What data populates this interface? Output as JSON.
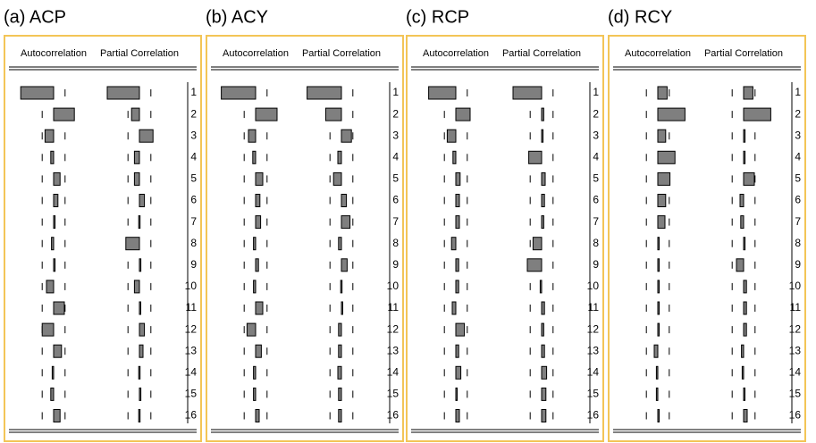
{
  "chart_data": [
    {
      "type": "correlogram",
      "title": "(a) ACP",
      "categories": [
        1,
        2,
        3,
        4,
        5,
        6,
        7,
        8,
        9,
        10,
        11,
        12,
        13,
        14,
        15,
        16
      ],
      "series": [
        {
          "name": "Autocorrelation",
          "color": "#7f7f7f",
          "values": [
            -0.46,
            0.29,
            -0.12,
            -0.04,
            0.09,
            0.06,
            0.02,
            -0.03,
            0.02,
            -0.1,
            0.15,
            -0.16,
            0.11,
            -0.02,
            -0.04,
            0.09
          ]
        },
        {
          "name": "Partial Correlation",
          "color": "#7f7f7f",
          "values": [
            -0.45,
            -0.11,
            0.19,
            -0.07,
            -0.07,
            0.07,
            -0.01,
            -0.19,
            0.02,
            -0.07,
            0.01,
            0.07,
            0.05,
            -0.01,
            0.02,
            -0.01
          ]
        }
      ],
      "xlim": [
        -1,
        1
      ],
      "bounds": [
        -0.16,
        0.16
      ]
    },
    {
      "type": "correlogram",
      "title": "(b) ACY",
      "categories": [
        1,
        2,
        3,
        4,
        5,
        6,
        7,
        8,
        9,
        10,
        11,
        12,
        13,
        14,
        15,
        16
      ],
      "series": [
        {
          "name": "Autocorrelation",
          "color": "#7f7f7f",
          "values": [
            -0.48,
            0.3,
            -0.1,
            -0.04,
            0.1,
            0.06,
            0.07,
            -0.03,
            0.04,
            -0.03,
            0.1,
            -0.12,
            0.08,
            -0.03,
            -0.03,
            0.05
          ]
        },
        {
          "name": "Partial Correlation",
          "color": "#7f7f7f",
          "values": [
            -0.48,
            -0.22,
            0.14,
            -0.05,
            -0.11,
            0.07,
            0.12,
            -0.04,
            0.08,
            -0.01,
            0.01,
            -0.04,
            -0.04,
            -0.05,
            -0.04,
            -0.04
          ]
        }
      ],
      "xlim": [
        -1,
        1
      ],
      "bounds": [
        -0.16,
        0.16
      ]
    },
    {
      "type": "correlogram",
      "title": "(c) RCP",
      "categories": [
        1,
        2,
        3,
        4,
        5,
        6,
        7,
        8,
        9,
        10,
        11,
        12,
        13,
        14,
        15,
        16
      ],
      "series": [
        {
          "name": "Autocorrelation",
          "color": "#7f7f7f",
          "values": [
            -0.38,
            0.2,
            -0.12,
            -0.04,
            0.06,
            0.05,
            0.05,
            -0.06,
            0.04,
            0.04,
            -0.05,
            0.12,
            0.04,
            0.07,
            0.01,
            0.05
          ]
        },
        {
          "name": "Partial Correlation",
          "color": "#7f7f7f",
          "values": [
            -0.4,
            0.03,
            0.02,
            -0.18,
            0.05,
            0.04,
            0.03,
            -0.12,
            -0.2,
            -0.02,
            0.04,
            0.03,
            0.04,
            0.07,
            0.06,
            0.06
          ]
        }
      ],
      "xlim": [
        -1,
        1
      ],
      "bounds": [
        -0.16,
        0.16
      ]
    },
    {
      "type": "correlogram",
      "title": "(d) RCY",
      "categories": [
        1,
        2,
        3,
        4,
        5,
        6,
        7,
        8,
        9,
        10,
        11,
        12,
        13,
        14,
        15,
        16
      ],
      "series": [
        {
          "name": "Autocorrelation",
          "color": "#7f7f7f",
          "values": [
            0.13,
            0.38,
            0.11,
            0.24,
            0.17,
            0.11,
            0.1,
            0.01,
            0.02,
            0.02,
            0.02,
            0.02,
            -0.05,
            -0.02,
            -0.02,
            0.0
          ]
        },
        {
          "name": "Partial Correlation",
          "color": "#7f7f7f",
          "values": [
            0.13,
            0.38,
            0.02,
            0.02,
            0.15,
            -0.05,
            -0.04,
            0.02,
            -0.1,
            0.04,
            0.04,
            0.04,
            -0.03,
            -0.02,
            0.01,
            0.05
          ]
        }
      ],
      "xlim": [
        -1,
        1
      ],
      "bounds": [
        -0.16,
        0.16
      ]
    }
  ]
}
